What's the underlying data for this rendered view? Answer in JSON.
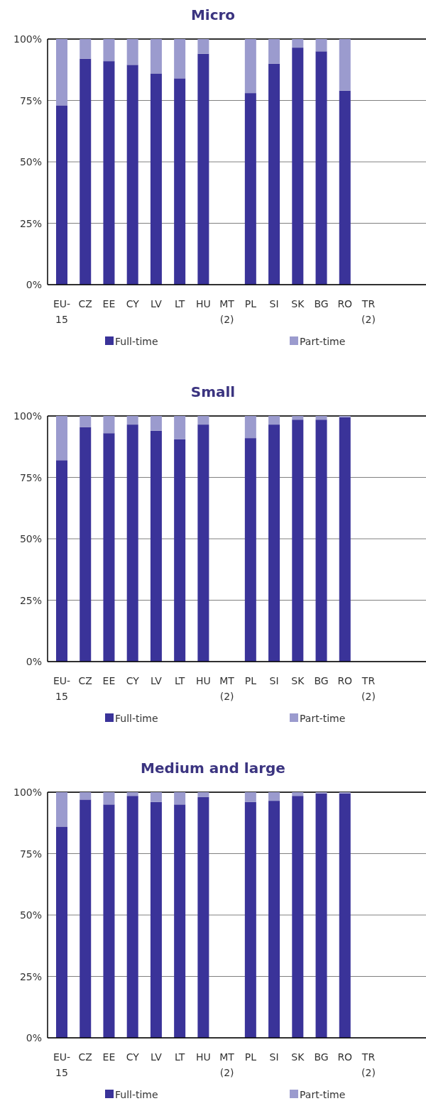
{
  "chart_data": [
    {
      "type": "bar",
      "title": "Micro",
      "stacked": true,
      "categories": [
        "EU-15",
        "CZ",
        "EE",
        "CY",
        "LV",
        "LT",
        "HU",
        "MT (2)",
        "PL",
        "SI",
        "SK",
        "BG",
        "RO",
        "TR (2)"
      ],
      "series": [
        {
          "name": "Full-time",
          "color": "#3a3399",
          "values": [
            73,
            92,
            91,
            89.5,
            86,
            84,
            94,
            null,
            78,
            90,
            96.5,
            95,
            79,
            null
          ]
        },
        {
          "name": "Part-time",
          "color": "#9b9bce",
          "values": [
            27,
            8,
            9,
            10.5,
            14,
            16,
            6,
            null,
            22,
            10,
            3.5,
            5,
            21,
            null
          ]
        }
      ],
      "ylim": [
        0,
        100
      ],
      "yticks": [
        {
          "value": 0,
          "label": "0%"
        },
        {
          "value": 25,
          "label": "25%"
        },
        {
          "value": 50,
          "label": "50%"
        },
        {
          "value": 75,
          "label": "75%"
        },
        {
          "value": 100,
          "label": "100%"
        }
      ],
      "grid": "y",
      "legend": "bottom"
    },
    {
      "type": "bar",
      "title": "Small",
      "stacked": true,
      "categories": [
        "EU-15",
        "CZ",
        "EE",
        "CY",
        "LV",
        "LT",
        "HU",
        "MT (2)",
        "PL",
        "SI",
        "SK",
        "BG",
        "RO",
        "TR (2)"
      ],
      "series": [
        {
          "name": "Full-time",
          "color": "#3a3399",
          "values": [
            82,
            95.5,
            93,
            96.5,
            94,
            90.5,
            96.5,
            null,
            91,
            96.5,
            98.5,
            98.5,
            99.5,
            null
          ]
        },
        {
          "name": "Part-time",
          "color": "#9b9bce",
          "values": [
            18,
            4.5,
            7,
            3.5,
            6,
            9.5,
            3.5,
            null,
            9,
            3.5,
            1.5,
            1.5,
            0.5,
            null
          ]
        }
      ],
      "ylim": [
        0,
        100
      ],
      "yticks": [
        {
          "value": 0,
          "label": "0%"
        },
        {
          "value": 25,
          "label": "25%"
        },
        {
          "value": 50,
          "label": "50%"
        },
        {
          "value": 75,
          "label": "75%"
        },
        {
          "value": 100,
          "label": "100%"
        }
      ],
      "grid": "y",
      "legend": "bottom"
    },
    {
      "type": "bar",
      "title": "Medium and large",
      "stacked": true,
      "categories": [
        "EU-15",
        "CZ",
        "EE",
        "CY",
        "LV",
        "LT",
        "HU",
        "MT (2)",
        "PL",
        "SI",
        "SK",
        "BG",
        "RO",
        "TR (2)"
      ],
      "series": [
        {
          "name": "Full-time",
          "color": "#3a3399",
          "values": [
            86,
            97,
            95,
            98.5,
            96,
            95,
            98,
            null,
            96,
            96.5,
            98.5,
            99.5,
            99.5,
            null
          ]
        },
        {
          "name": "Part-time",
          "color": "#9b9bce",
          "values": [
            14,
            3,
            5,
            1.5,
            4,
            5,
            2,
            null,
            4,
            3.5,
            1.5,
            0.5,
            0.5,
            null
          ]
        }
      ],
      "ylim": [
        0,
        100
      ],
      "yticks": [
        {
          "value": 0,
          "label": "0%"
        },
        {
          "value": 25,
          "label": "25%"
        },
        {
          "value": 50,
          "label": "50%"
        },
        {
          "value": 75,
          "label": "75%"
        },
        {
          "value": 100,
          "label": "100%"
        }
      ],
      "grid": "y",
      "legend": "bottom"
    }
  ]
}
